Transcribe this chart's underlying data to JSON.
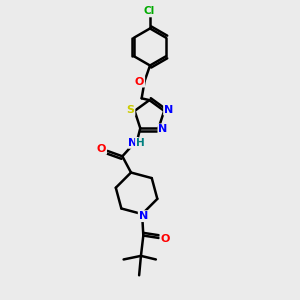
{
  "bg_color": "#ebebeb",
  "atom_colors": {
    "C": "#000000",
    "H": "#008080",
    "N": "#0000ff",
    "O": "#ff0000",
    "S": "#cccc00",
    "Cl": "#00aa00"
  },
  "bond_color": "#000000",
  "bond_width": 1.8,
  "figsize": [
    3.0,
    3.0
  ],
  "dpi": 100
}
